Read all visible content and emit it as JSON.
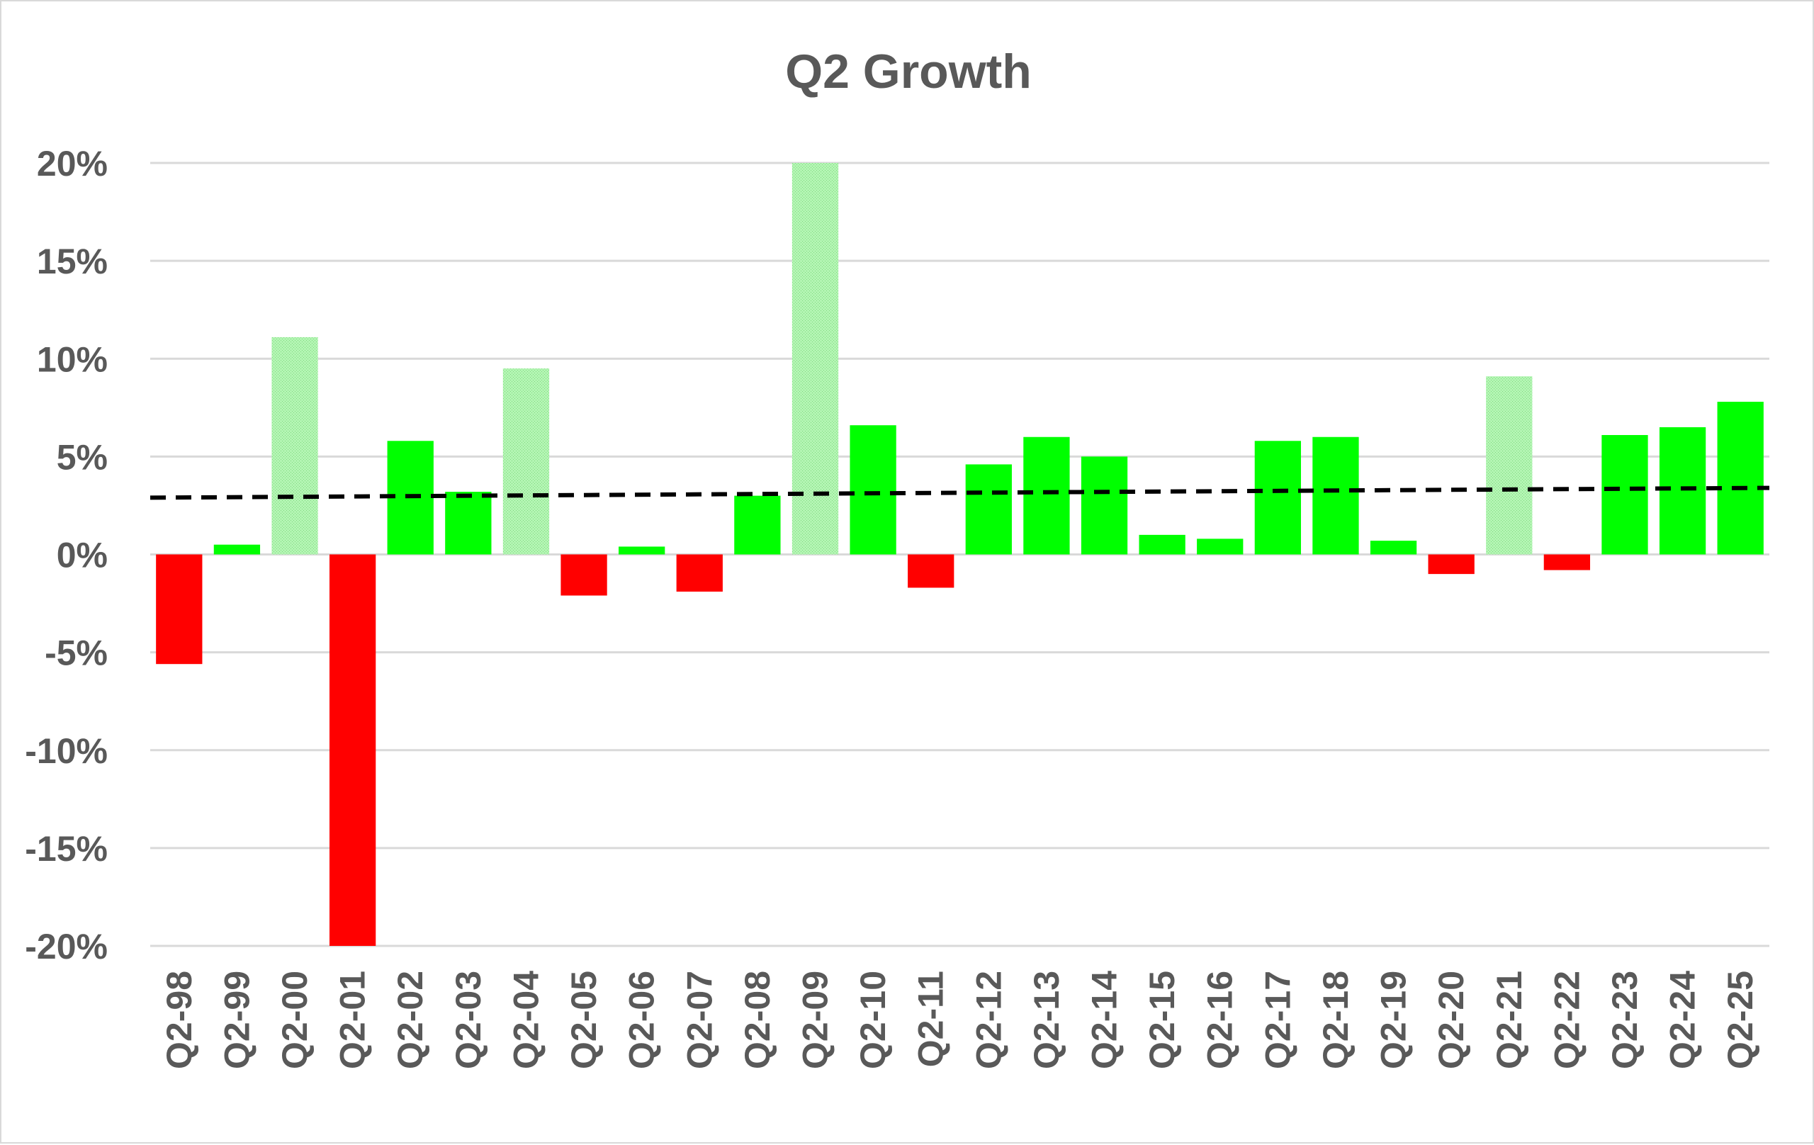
{
  "chart_data": {
    "type": "bar",
    "title": "Q2 Growth",
    "xlabel": "",
    "ylabel": "",
    "ylim": [
      -0.2,
      0.2
    ],
    "ytick_values": [
      0.2,
      0.15,
      0.1,
      0.05,
      0.0,
      -0.05,
      -0.1,
      -0.15,
      -0.2
    ],
    "ytick_labels": [
      "20%",
      "15%",
      "10%",
      "5%",
      "0%",
      "-5%",
      "-10%",
      "-15%",
      "-20%"
    ],
    "grid": true,
    "legend": "none",
    "categories": [
      "Q2-98",
      "Q2-99",
      "Q2-00",
      "Q2-01",
      "Q2-02",
      "Q2-03",
      "Q2-04",
      "Q2-05",
      "Q2-06",
      "Q2-07",
      "Q2-08",
      "Q2-09",
      "Q2-10",
      "Q2-11",
      "Q2-12",
      "Q2-13",
      "Q2-14",
      "Q2-15",
      "Q2-16",
      "Q2-17",
      "Q2-18",
      "Q2-19",
      "Q2-20",
      "Q2-21",
      "Q2-22",
      "Q2-23",
      "Q2-24",
      "Q2-25"
    ],
    "values": [
      -0.056,
      0.005,
      0.111,
      -0.2,
      0.058,
      0.032,
      0.095,
      -0.021,
      0.004,
      -0.019,
      0.03,
      0.2,
      0.066,
      -0.017,
      0.046,
      0.06,
      0.05,
      0.01,
      0.008,
      0.058,
      0.06,
      0.007,
      -0.01,
      0.091,
      -0.008,
      0.061,
      0.065,
      0.078
    ],
    "bar_styles": [
      "neg",
      "pos",
      "light",
      "neg",
      "pos",
      "pos",
      "light",
      "neg",
      "pos",
      "neg",
      "pos",
      "light",
      "pos",
      "neg",
      "pos",
      "pos",
      "pos",
      "pos",
      "pos",
      "pos",
      "pos",
      "pos",
      "neg",
      "light",
      "neg",
      "pos",
      "pos",
      "pos"
    ],
    "trendline": {
      "style": "dashed",
      "color": "#000000",
      "start": 0.029,
      "end": 0.034
    },
    "colors": {
      "pos": "#00ff00",
      "neg": "#ff0000",
      "light": "#b3f5b3",
      "grid": "#d9d9d9",
      "text": "#595959"
    }
  }
}
